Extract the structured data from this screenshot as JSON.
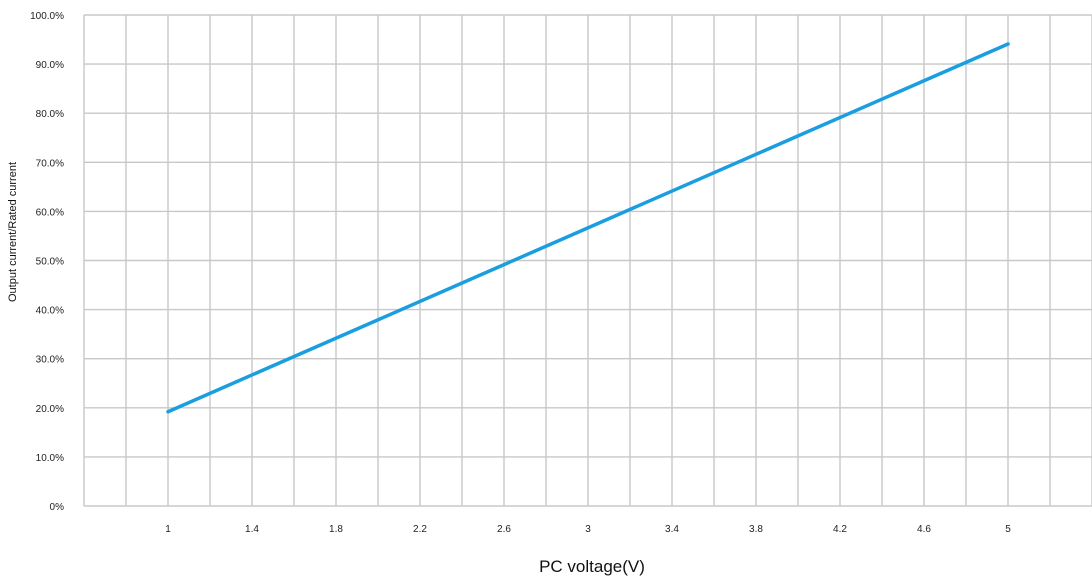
{
  "chart_data": {
    "type": "line",
    "xlabel": "PC voltage(V)",
    "ylabel": "Output current/Rated current",
    "x_ticks": [
      "1",
      "1.4",
      "1.8",
      "2.2",
      "2.6",
      "3",
      "3.4",
      "3.8",
      "4.2",
      "4.6",
      "5"
    ],
    "y_ticks": [
      "0%",
      "10.0%",
      "20.0%",
      "30.0%",
      "40.0%",
      "50.0%",
      "60.0%",
      "70.0%",
      "80.0%",
      "90.0%",
      "100.0%"
    ],
    "xlim": [
      0.6,
      5.4
    ],
    "ylim": [
      0,
      100
    ],
    "grid": true,
    "series": [
      {
        "x": [
          1,
          5
        ],
        "y": [
          19.2,
          94.1
        ],
        "color": "#1a9ee0"
      }
    ]
  }
}
